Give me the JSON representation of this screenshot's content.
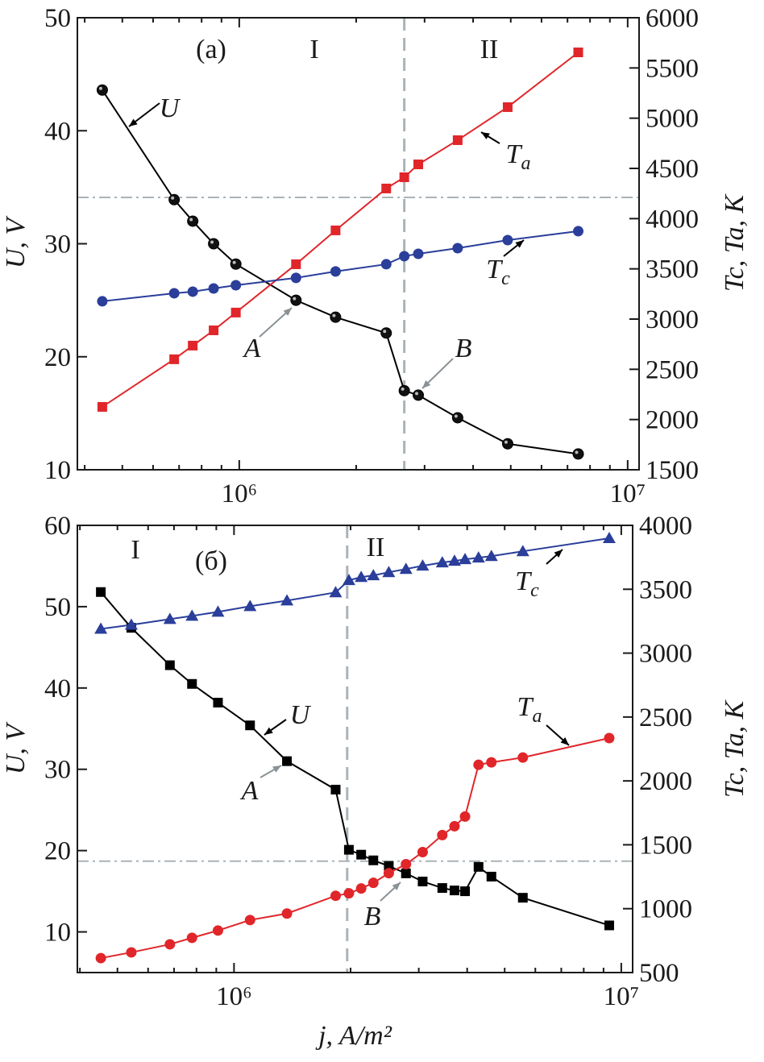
{
  "chart_data": [
    {
      "type": "line",
      "panel_label": "(a)",
      "regions": [
        "I",
        "II"
      ],
      "xscale": "log",
      "xlim": [
        383000,
        10700000
      ],
      "xticks": [
        1000000,
        10000000
      ],
      "xtick_labels": [
        "10⁶",
        "10⁷"
      ],
      "ylabel_left": "U, V",
      "ylabel_right": "Tc, Ta, K",
      "ylim_left": [
        10,
        50
      ],
      "yticks_left": [
        10,
        20,
        30,
        40,
        50
      ],
      "ylim_right": [
        1500,
        6000
      ],
      "yticks_right": [
        1500,
        2000,
        2500,
        3000,
        3500,
        4000,
        4500,
        5000,
        5500,
        6000
      ],
      "vline_x": 2660000,
      "hline_left": 34.1,
      "annotations": [
        "A",
        "B"
      ],
      "series": [
        {
          "name": "U",
          "axis": "left",
          "marker": "sphere",
          "color": "#000000",
          "x": [
            444000,
            680000,
            759000,
            859000,
            980000,
            1400000,
            1770000,
            2390000,
            2660000,
            2890000,
            3650000,
            4910000,
            7460000
          ],
          "y": [
            43.6,
            33.9,
            32.0,
            30.0,
            28.2,
            25.0,
            23.5,
            22.1,
            17.0,
            16.6,
            14.6,
            12.3,
            11.4
          ]
        },
        {
          "name": "Ta",
          "axis": "right",
          "marker": "square",
          "color": "#e0262a",
          "x": [
            444000,
            680000,
            759000,
            859000,
            980000,
            1400000,
            1770000,
            2390000,
            2660000,
            2890000,
            3650000,
            4910000,
            7460000
          ],
          "y": [
            2126,
            2600,
            2736,
            2888,
            3065,
            3546,
            3883,
            4300,
            4412,
            4540,
            4781,
            5110,
            5655
          ]
        },
        {
          "name": "Tc",
          "axis": "right",
          "marker": "circle",
          "color": "#2a3e9a",
          "x": [
            444000,
            680000,
            759000,
            859000,
            980000,
            1400000,
            1770000,
            2390000,
            2660000,
            2890000,
            3650000,
            4910000,
            7460000
          ],
          "y": [
            3177,
            3257,
            3273,
            3305,
            3337,
            3410,
            3474,
            3546,
            3626,
            3650,
            3706,
            3786,
            3875
          ]
        }
      ]
    },
    {
      "type": "line",
      "panel_label": "(б)",
      "regions": [
        "I",
        "II"
      ],
      "xscale": "log",
      "xlim": [
        394000,
        10700000
      ],
      "xticks": [
        1000000,
        10000000
      ],
      "xtick_labels": [
        "10⁶",
        "10⁷"
      ],
      "xlabel": "j, A/m²",
      "ylabel_left": "U, V",
      "ylabel_right": "Tc, Ta, K",
      "ylim_left": [
        5,
        60
      ],
      "yticks_left": [
        10,
        20,
        30,
        40,
        50,
        60
      ],
      "ylim_right": [
        500,
        4000
      ],
      "yticks_right": [
        500,
        1000,
        1500,
        2000,
        2500,
        3000,
        3500,
        4000
      ],
      "vline_x": 1960000,
      "hline_left": 18.7,
      "annotations": [
        "A",
        "B"
      ],
      "series": [
        {
          "name": "U",
          "axis": "left",
          "marker": "square",
          "color": "#000000",
          "x": [
            453000,
            543000,
            683000,
            779000,
            909000,
            1100000,
            1370000,
            1830000,
            1980000,
            2130000,
            2290000,
            2510000,
            2780000,
            3070000,
            3450000,
            3710000,
            3950000,
            4280000,
            4620000,
            5570000,
            9310000
          ],
          "y": [
            51.8,
            47.4,
            42.8,
            40.5,
            38.2,
            35.4,
            31.0,
            27.5,
            20.1,
            19.5,
            18.8,
            18.1,
            17.2,
            16.2,
            15.4,
            15.1,
            15.0,
            18.0,
            16.8,
            14.2,
            10.8
          ]
        },
        {
          "name": "Tc",
          "axis": "right",
          "marker": "triangle",
          "color": "#2a3e9a",
          "x": [
            453000,
            543000,
            683000,
            779000,
            909000,
            1100000,
            1370000,
            1830000,
            1980000,
            2130000,
            2290000,
            2510000,
            2780000,
            3070000,
            3450000,
            3710000,
            3950000,
            4280000,
            4620000,
            5570000,
            9310000
          ],
          "y": [
            3190,
            3221,
            3266,
            3291,
            3323,
            3367,
            3411,
            3475,
            3570,
            3595,
            3608,
            3633,
            3658,
            3684,
            3709,
            3722,
            3734,
            3747,
            3759,
            3797,
            3899
          ]
        },
        {
          "name": "Ta",
          "axis": "right",
          "marker": "circle",
          "color": "#e0262a",
          "x": [
            453000,
            543000,
            683000,
            779000,
            909000,
            1100000,
            1370000,
            1830000,
            1980000,
            2130000,
            2290000,
            2510000,
            2780000,
            3070000,
            3450000,
            3710000,
            3950000,
            4280000,
            4620000,
            5570000,
            9310000
          ],
          "y": [
            613,
            658,
            721,
            772,
            829,
            911,
            962,
            1101,
            1120,
            1158,
            1202,
            1278,
            1348,
            1443,
            1576,
            1645,
            1721,
            2126,
            2145,
            2183,
            2335
          ]
        }
      ]
    }
  ]
}
